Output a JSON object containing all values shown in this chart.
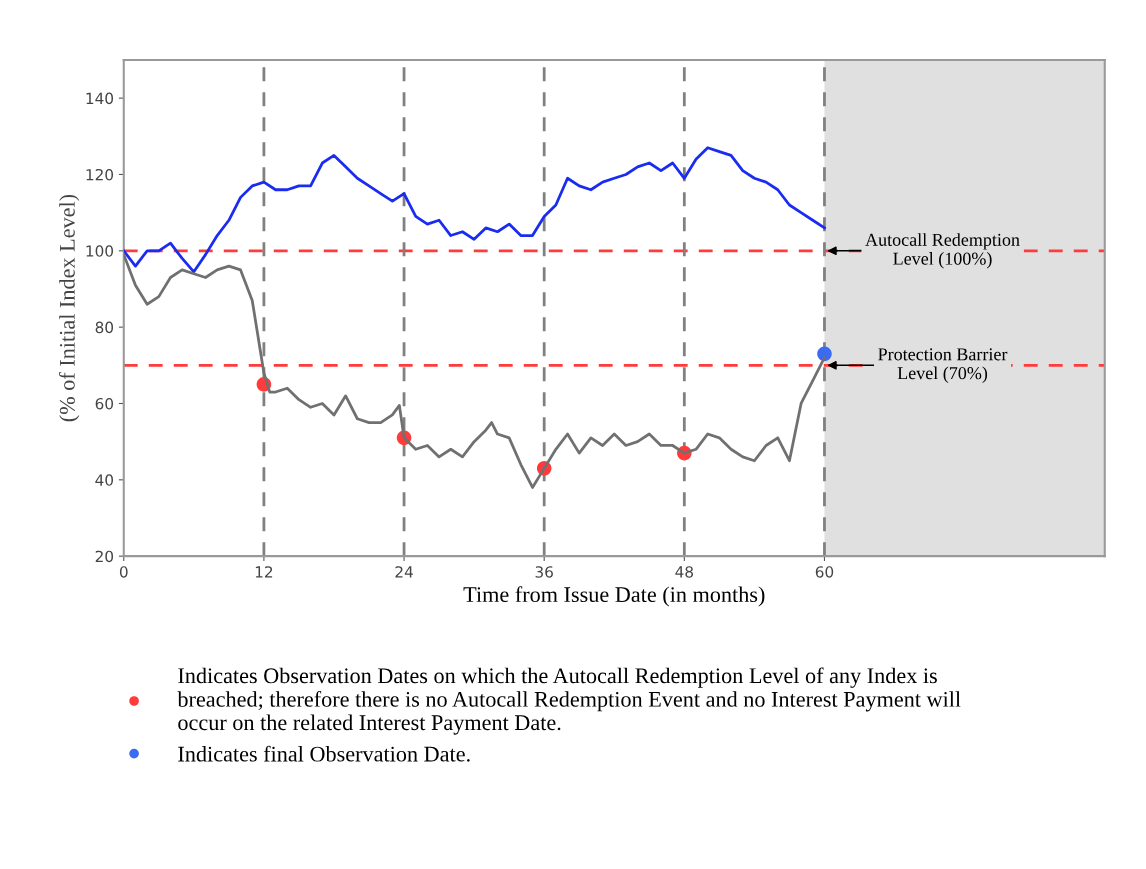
{
  "chart_data": {
    "type": "line",
    "xlabel": "Time from Issue Date (in months)",
    "ylabel": "(% of Initial Index Level)",
    "xlim": [
      0,
      84
    ],
    "xticks": [
      0,
      12,
      24,
      36,
      48,
      60
    ],
    "ylim": [
      20,
      150
    ],
    "yticks": [
      20,
      40,
      60,
      80,
      100,
      120,
      140
    ],
    "grid": false,
    "legend": "bottom",
    "series": [
      {
        "color": "#1a2cf0",
        "x": [
          0,
          1,
          2,
          3,
          4,
          5,
          6,
          7,
          8,
          9,
          10,
          11,
          12,
          13,
          14,
          15,
          16,
          17,
          18,
          19,
          20,
          21,
          22,
          23,
          24,
          25,
          26,
          27,
          28,
          29,
          30,
          31,
          32,
          33,
          34,
          35,
          36,
          37,
          38,
          39,
          40,
          41,
          42,
          43,
          44,
          45,
          46,
          47,
          48,
          49,
          50,
          51,
          52,
          53,
          54,
          55,
          56,
          57,
          58,
          59,
          60
        ],
        "values": [
          100,
          96,
          100,
          100,
          102,
          98,
          94.5,
          99,
          104,
          108,
          114,
          117,
          118,
          116,
          116,
          117,
          117,
          123,
          125,
          122,
          119,
          117,
          115,
          113,
          115,
          109,
          107,
          108,
          104,
          105,
          103,
          106,
          105,
          107,
          104,
          104,
          109,
          112,
          119,
          117,
          116,
          118,
          119,
          120,
          122,
          123,
          121,
          123,
          119,
          124,
          127,
          126,
          125,
          121,
          119,
          118,
          116,
          112,
          110,
          108,
          106
        ]
      },
      {
        "color": "#707070",
        "x": [
          0,
          1,
          2,
          3,
          4,
          5,
          6,
          7,
          8,
          9,
          10,
          11,
          12,
          12.5,
          13,
          14,
          15,
          16,
          17,
          18,
          19,
          20,
          21,
          22,
          23,
          23.6,
          24,
          25,
          26,
          27,
          28,
          29,
          30,
          31,
          31.5,
          32,
          33,
          34,
          35,
          36,
          37,
          38,
          39,
          40,
          41,
          42,
          43,
          44,
          45,
          46,
          47,
          48,
          49,
          50,
          51,
          52,
          53,
          54,
          55,
          56,
          57,
          58,
          59,
          60
        ],
        "values": [
          99,
          91,
          86,
          88,
          93,
          95,
          94,
          93,
          95,
          96,
          95,
          87,
          68,
          63,
          63,
          64,
          61,
          59,
          60,
          57,
          62,
          56,
          55,
          55,
          57,
          59.5,
          51,
          48,
          49,
          46,
          48,
          46,
          50,
          53,
          55,
          52,
          51,
          44,
          38,
          43,
          48,
          52,
          47,
          51,
          49,
          52,
          49,
          50,
          52,
          49,
          49,
          47,
          48,
          52,
          51,
          48,
          46,
          45,
          49,
          51,
          45,
          60,
          66,
          72
        ]
      },
      {
        "type": "scatter",
        "name": "Indicates Observation Dates on which the Autocall Redemption Level of any Index is\nbreached; therefore there is no Autocall Redemption Event and no Interest Payment will\noccur on the related Interest Payment Date.",
        "color": "#ff3b3b",
        "x": [
          12,
          24,
          36,
          48
        ],
        "values": [
          65,
          51,
          43,
          47
        ]
      },
      {
        "type": "scatter",
        "name": "Indicates final Observation Date.",
        "color": "#3a6bf0",
        "x": [
          60
        ],
        "values": [
          73
        ]
      }
    ],
    "ref_lines": [
      {
        "axis": "y",
        "value": 100,
        "color": "#ff3b3b",
        "line_style": "dashed"
      },
      {
        "axis": "y",
        "value": 70,
        "color": "#ff3b3b",
        "line_style": "dashed"
      },
      {
        "axis": "x",
        "value": 12,
        "color": "#808080",
        "line_style": "dashed"
      },
      {
        "axis": "x",
        "value": 24,
        "color": "#808080",
        "line_style": "dashed"
      },
      {
        "axis": "x",
        "value": 36,
        "color": "#808080",
        "line_style": "dashed"
      },
      {
        "axis": "x",
        "value": 48,
        "color": "#808080",
        "line_style": "dashed"
      },
      {
        "axis": "x",
        "value": 60,
        "color": "#808080",
        "line_style": "dashed"
      }
    ],
    "bands": [
      {
        "axis": "x",
        "from": 60,
        "to": 84,
        "color": "#e0e0e0"
      }
    ],
    "annotations": [
      {
        "text": "Autocall Redemption\nLevel (100%)",
        "x": 60,
        "y": 100
      },
      {
        "text": "Protection Barrier\nLevel (70%)",
        "x": 60,
        "y": 70
      }
    ]
  }
}
